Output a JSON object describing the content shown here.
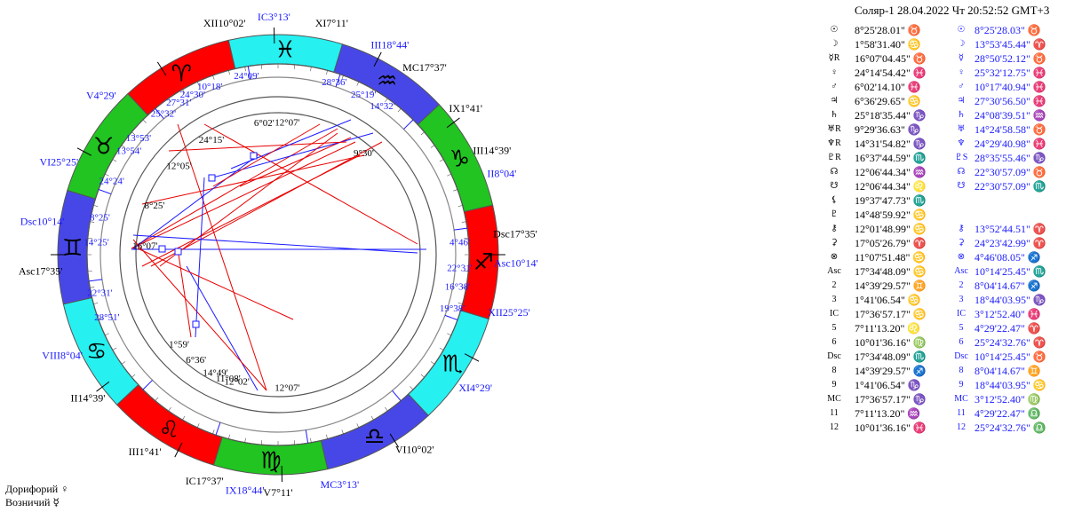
{
  "title": "Соляр-1 28.04.2022  Чт 20:52:52 GMT+3",
  "signs": [
    "♓",
    "♒",
    "♑",
    "♐",
    "♏",
    "♎",
    "♍",
    "♌",
    "♋",
    "♊",
    "♉",
    "♈"
  ],
  "sign_colors": {
    "fire": "#ff0000",
    "earth": "#21c421",
    "air": "#4747e8",
    "water": "#26f0f0"
  },
  "outer_labels": [
    {
      "t": "XII10°02'",
      "c": "#000"
    },
    {
      "t": "IC3°13'",
      "c": "#1a1aff"
    },
    {
      "t": "XI7°11'",
      "c": "#000"
    },
    {
      "t": "III18°44'",
      "c": "#1a1aff"
    },
    {
      "t": "MC17°37'",
      "c": "#000"
    },
    {
      "t": "IX1°41'",
      "c": "#000"
    },
    {
      "t": "III14°39'",
      "c": "#000"
    },
    {
      "t": "II8°04'",
      "c": "#1a1aff"
    },
    {
      "t": "Dsc17°35'",
      "c": "#000"
    },
    {
      "t": "Asc10°14'",
      "c": "#1a1aff"
    },
    {
      "t": "XII25°25'",
      "c": "#1a1aff"
    },
    {
      "t": "XI4°29'",
      "c": "#1a1aff"
    },
    {
      "t": "VI10°02'",
      "c": "#000"
    },
    {
      "t": "MC3°13'",
      "c": "#1a1aff"
    },
    {
      "t": "V7°11'",
      "c": "#000"
    },
    {
      "t": "IX18°44'",
      "c": "#1a1aff"
    },
    {
      "t": "IC17°37'",
      "c": "#000"
    },
    {
      "t": "III1°41'",
      "c": "#000"
    },
    {
      "t": "II14°39'",
      "c": "#000"
    },
    {
      "t": "VIII8°04'",
      "c": "#1a1aff"
    },
    {
      "t": "Asc17°35'",
      "c": "#000"
    },
    {
      "t": "Dsc10°14'",
      "c": "#1a1aff"
    },
    {
      "t": "VI25°25'",
      "c": "#1a1aff"
    },
    {
      "t": "V4°29'",
      "c": "#1a1aff"
    }
  ],
  "transit_labels": [
    "24°30'",
    "10°18'",
    "24°09'",
    "27°31'",
    "25°32'",
    "28°36'",
    "25°19'",
    "14°32'",
    "13°53'",
    "13°54'",
    "24°24'",
    "8°25'",
    "14°25'",
    "22°31'",
    "28°51'",
    "4°46'",
    "22°31'",
    "16°38'",
    "19°38'"
  ],
  "inner_labels": [
    "6°02'",
    "12°07'",
    "24°15'",
    "9°30'",
    "12°05'",
    "8°25'",
    "16°07'",
    "1°59'",
    "6°36'",
    "14°49'",
    "12°02'",
    "11°08'",
    "12°07'"
  ],
  "table_rows": [
    {
      "s1": "☉",
      "v1": "8°25'28.01\" ♉",
      "s2": "☉",
      "v2": "8°25'28.03\" ♉"
    },
    {
      "s1": "☽",
      "v1": "1°58'31.40\" ♋",
      "s2": "☽",
      "v2": "13°53'45.44\" ♈"
    },
    {
      "s1": "☿R",
      "v1": "16°07'04.45\" ♉",
      "s2": "☿",
      "v2": "28°50'52.12\" ♉"
    },
    {
      "s1": "♀",
      "v1": "24°14'54.42\" ♓",
      "s2": "♀",
      "v2": "25°32'12.75\" ♓"
    },
    {
      "s1": "♂",
      "v1": "6°02'14.10\" ♓",
      "s2": "♂",
      "v2": "10°17'40.94\" ♓"
    },
    {
      "s1": "♃",
      "v1": "6°36'29.65\" ♋",
      "s2": "♃",
      "v2": "27°30'56.50\" ♓"
    },
    {
      "s1": "♄",
      "v1": "25°18'35.44\" ♑",
      "s2": "♄",
      "v2": "24°08'39.51\" ♒"
    },
    {
      "s1": "♅R",
      "v1": "9°29'36.63\" ♑",
      "s2": "♅",
      "v2": "14°24'58.58\" ♉"
    },
    {
      "s1": "♆R",
      "v1": "14°31'54.82\" ♑",
      "s2": "♆",
      "v2": "24°29'40.98\" ♓"
    },
    {
      "s1": "♇R",
      "v1": "16°37'44.59\" ♏",
      "s2": "♇S",
      "v2": "28°35'55.46\" ♑"
    },
    {
      "s1": "☊",
      "v1": "12°06'44.34\" ♒",
      "s2": "☊",
      "v2": "22°30'57.09\" ♉"
    },
    {
      "s1": "☋",
      "v1": "12°06'44.34\" ♌",
      "s2": "☋",
      "v2": "22°30'57.09\" ♏"
    },
    {
      "s1": "⚸",
      "v1": "19°37'47.73\" ♏",
      "s2": "",
      "v2": ""
    },
    {
      "s1": "♇",
      "v1": "14°48'59.92\" ♋",
      "s2": "",
      "v2": ""
    },
    {
      "s1": "⚷",
      "v1": "12°01'48.99\" ♋",
      "s2": "⚷",
      "v2": "13°52'44.51\" ♈"
    },
    {
      "s1": "⚳",
      "v1": "17°05'26.79\" ♈",
      "s2": "⚳",
      "v2": "24°23'42.99\" ♈"
    },
    {
      "s1": "⊗",
      "v1": "11°07'51.48\" ♋",
      "s2": "⊗",
      "v2": "4°46'08.05\" ♐"
    },
    {
      "s1": "Asc",
      "v1": "17°34'48.09\" ♋",
      "s2": "Asc",
      "v2": "10°14'25.45\" ♏"
    },
    {
      "s1": "2",
      "v1": "14°39'29.57\" ♊",
      "s2": "2",
      "v2": "8°04'14.67\" ♐"
    },
    {
      "s1": "3",
      "v1": "1°41'06.54\" ♋",
      "s2": "3",
      "v2": "18°44'03.95\" ♑"
    },
    {
      "s1": "IC",
      "v1": "17°36'57.17\" ♋",
      "s2": "IC",
      "v2": "3°12'52.40\" ♓"
    },
    {
      "s1": "5",
      "v1": "7°11'13.20\" ♌",
      "s2": "5",
      "v2": "4°29'22.47\" ♈"
    },
    {
      "s1": "6",
      "v1": "10°01'36.16\" ♍",
      "s2": "6",
      "v2": "25°24'32.76\" ♈"
    },
    {
      "s1": "Dsc",
      "v1": "17°34'48.09\" ♏",
      "s2": "Dsc",
      "v2": "10°14'25.45\" ♉"
    },
    {
      "s1": "8",
      "v1": "14°39'29.57\" ♐",
      "s2": "8",
      "v2": "8°04'14.67\" ♊"
    },
    {
      "s1": "9",
      "v1": "1°41'06.54\" ♑",
      "s2": "9",
      "v2": "18°44'03.95\" ♋"
    },
    {
      "s1": "MC",
      "v1": "17°36'57.17\" ♑",
      "s2": "MC",
      "v2": "3°12'52.40\" ♍"
    },
    {
      "s1": "11",
      "v1": "7°11'13.20\" ♒",
      "s2": "11",
      "v2": "4°29'22.47\" ♎"
    },
    {
      "s1": "12",
      "v1": "10°01'36.16\" ♓",
      "s2": "12",
      "v2": "25°24'32.76\" ♎"
    }
  ],
  "footer": {
    "doryphory": "Дорифорий  ♀",
    "vozniciy": "Возничий  ☿"
  }
}
